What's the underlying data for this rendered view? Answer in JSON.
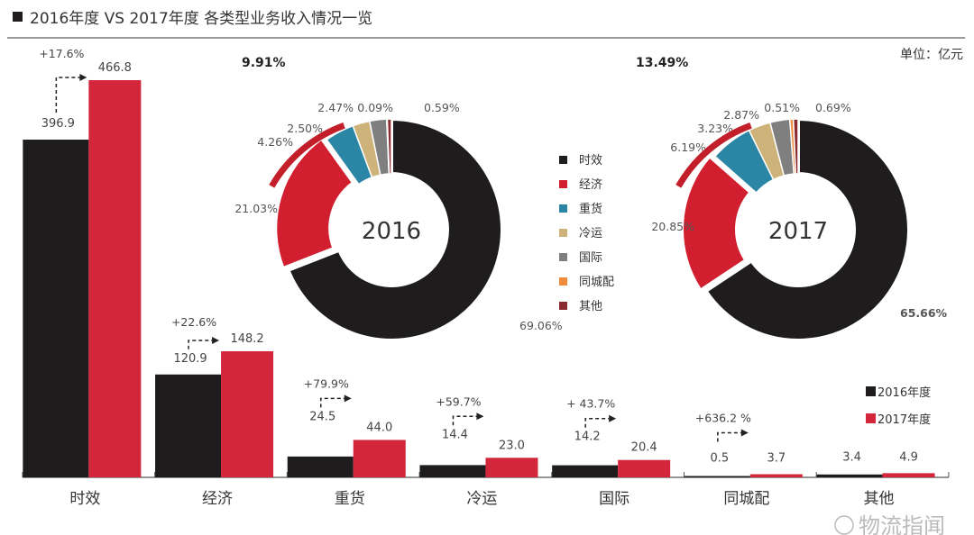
{
  "title": "2016年度 VS 2017年度 各类型业务收入情况一览",
  "unit": "单位：亿元",
  "watermark": "物流指闻",
  "colors": {
    "2016": "#1e1c1d",
    "2017": "#d3263a",
    "时效": "#1e1c1d",
    "经济": "#d11f2f",
    "重货": "#2b86a6",
    "冷运": "#cdb279",
    "国际": "#7f7f7f",
    "同城配": "#ef8a3a",
    "其他": "#8b2a2e",
    "arc": "#c21f2a"
  },
  "chart_data": [
    {
      "type": "bar",
      "categories": [
        "时效",
        "经济",
        "重货",
        "冷运",
        "国际",
        "同城配",
        "其他"
      ],
      "series": [
        {
          "name": "2016年度",
          "values": [
            396.9,
            120.9,
            24.5,
            14.4,
            14.2,
            0.5,
            3.4
          ]
        },
        {
          "name": "2017年度",
          "values": [
            466.8,
            148.2,
            44.0,
            23.0,
            20.4,
            3.7,
            4.9
          ]
        }
      ],
      "value_labels": {
        "2016年度": [
          "396.9",
          "120.9",
          "24.5",
          "14.4",
          "14.2",
          "0.5",
          "3.4"
        ],
        "2017年度": [
          "466.8",
          "148.2",
          "44.0",
          "23.0",
          "20.4",
          "3.7",
          "4.9"
        ]
      },
      "growth_labels": [
        "+17.6%",
        "+22.6%",
        "+79.9%",
        "+59.7%",
        "+ 43.7%",
        "+636.2 %",
        ""
      ],
      "legend": [
        "2016年度",
        "2017年度"
      ],
      "legend_position": "bottom-right",
      "grid": false
    },
    {
      "type": "pie",
      "center_label": "2016",
      "categories": [
        "时效",
        "经济",
        "重货",
        "冷运",
        "国际",
        "同城配",
        "其他"
      ],
      "values": [
        69.06,
        21.03,
        4.26,
        2.5,
        2.47,
        0.09,
        0.59
      ],
      "labels": [
        "69.06%",
        "21.03%",
        "4.26%",
        "2.50%",
        "2.47%",
        "0.09%",
        "0.59%"
      ],
      "highlight_label": "9.91%"
    },
    {
      "type": "pie",
      "center_label": "2017",
      "categories": [
        "时效",
        "经济",
        "重货",
        "冷运",
        "国际",
        "同城配",
        "其他"
      ],
      "values": [
        65.66,
        20.85,
        6.19,
        3.23,
        2.87,
        0.51,
        0.69
      ],
      "labels": [
        "65.66%",
        "20.85%",
        "6.19%",
        "3.23%",
        "2.87%",
        "0.51%",
        "0.69%"
      ],
      "highlight_label": "13.49%"
    }
  ],
  "pie_legend": [
    "时效",
    "经济",
    "重货",
    "冷运",
    "国际",
    "同城配",
    "其他"
  ]
}
